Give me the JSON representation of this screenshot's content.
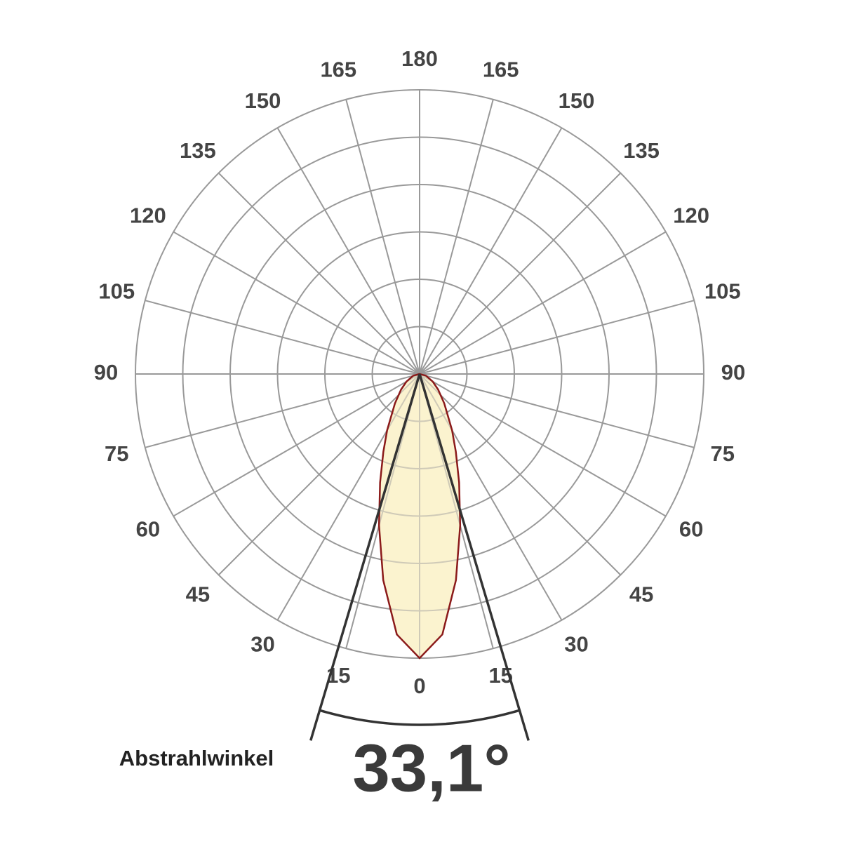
{
  "chart_data": {
    "type": "polar",
    "x": [
      -90,
      -75,
      -60,
      -50,
      -40,
      -30,
      -25,
      -20,
      -15,
      -10,
      -5,
      0,
      5,
      10,
      15,
      20,
      25,
      30,
      40,
      50,
      60,
      75,
      90
    ],
    "values": [
      0,
      0.14,
      0.32,
      0.51,
      0.81,
      1.37,
      1.81,
      2.44,
      3.31,
      4.42,
      5.52,
      6.0,
      5.52,
      4.42,
      3.31,
      2.44,
      1.81,
      1.37,
      0.81,
      0.51,
      0.32,
      0.14,
      0
    ],
    "color": "#8b1a1a",
    "fill": "#fbf3cf",
    "rlim": [
      0,
      6
    ],
    "rticks": [
      1,
      2,
      3,
      4,
      5,
      6
    ],
    "xticks": [
      0,
      15,
      30,
      45,
      60,
      75,
      90,
      105,
      120,
      135,
      150,
      165,
      180
    ],
    "grid": true,
    "beam_label": "Abstrahlwinkel",
    "beam_angle": {
      "value": 33.1,
      "label": "33,1°"
    }
  }
}
